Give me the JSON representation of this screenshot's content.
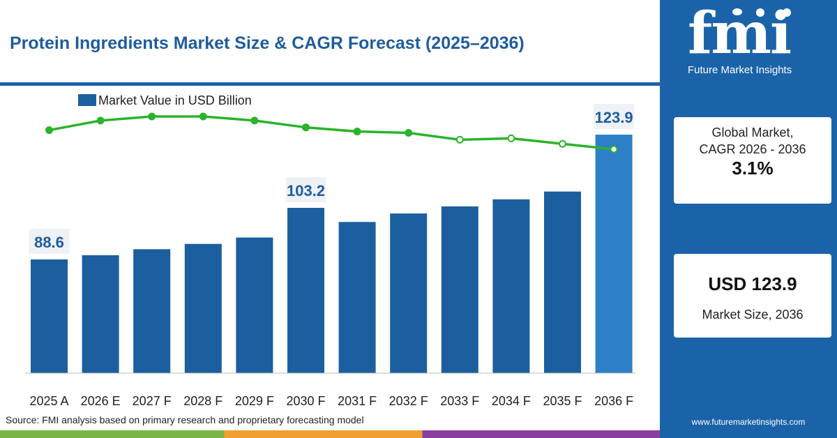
{
  "title": "Protein Ingredients Market Size & CAGR Forecast (2025–2036)",
  "source": "Source: FMI analysis based on primary research and proprietary forecasting model",
  "sidebar": {
    "logo": "fmi",
    "logo_sub": "Future Market Insights",
    "card1": {
      "line1": "Global Market,",
      "line2": "CAGR 2026 - 2036",
      "value": "3.1%"
    },
    "card2": {
      "value": "USD 123.9",
      "label": "Market Size, 2036"
    },
    "website": "www.futuremarketinsights.com"
  },
  "colors": {
    "bar": "#1b5f9e",
    "bar_last": "#2d80c8",
    "line": "#2bb32b",
    "title": "#1f5c9e",
    "accent": "#1b63a8"
  },
  "chart_data": {
    "type": "bar",
    "categories": [
      "2025 A",
      "2026 E",
      "2027 F",
      "2028 F",
      "2029 F",
      "2030 F",
      "2031 F",
      "2032 F",
      "2033 F",
      "2034 F",
      "2035 F",
      "2036 F"
    ],
    "series": [
      {
        "name": "Market Value in USD Billion",
        "values": [
          88.6,
          89.8,
          91.5,
          93.0,
          94.8,
          103.2,
          99.2,
          101.6,
          103.6,
          105.6,
          107.8,
          123.9
        ]
      },
      {
        "values": [
          3.9,
          4.6,
          4.9,
          4.9,
          4.6,
          4.1,
          3.8,
          3.7,
          3.2,
          3.3,
          2.9,
          2.5
        ]
      }
    ],
    "data_labels": [
      {
        "index": 0,
        "text": "88.6"
      },
      {
        "index": 5,
        "text": "103.2"
      },
      {
        "index": 11,
        "text": "123.9"
      }
    ],
    "legend_label": "Market Value in USD Billion",
    "legend": "top-left",
    "grid": false
  }
}
